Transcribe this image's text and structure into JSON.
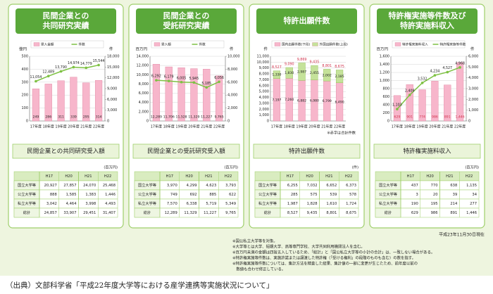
{
  "chart_data": [
    {
      "type": "bar_line",
      "title": [
        "民間企業との",
        "共同研究実績"
      ],
      "y_label": "億円",
      "y2_label": "件",
      "categories": [
        "17年度",
        "18年度",
        "19年度",
        "20年度",
        "21年度",
        "22年度"
      ],
      "series": [
        {
          "name": "受入金額",
          "color": "#f7b6cb",
          "values": [
            249,
            286,
            311,
            339,
            295,
            314
          ]
        },
        {
          "name": "件数",
          "color": "#7dc142",
          "axis": "y2",
          "values": [
            11054,
            12489,
            13790,
            14974,
            14779,
            15544
          ],
          "value_labels": [
            "11,054",
            "12,489",
            "13,790",
            "14,974",
            "14,779",
            "15,544"
          ]
        }
      ],
      "ylim": [
        0,
        500
      ],
      "yticks": [
        0,
        100,
        200,
        300,
        400,
        500
      ],
      "y2lim": [
        0,
        18000
      ],
      "y2ticks": [
        0,
        {
          "value": 3000,
          "label": "3,000"
        },
        {
          "value": 6000,
          "label": "6,000"
        },
        {
          "value": 9000,
          "label": "9,000"
        },
        {
          "value": 12000,
          "label": "12,000"
        },
        {
          "value": 15000,
          "label": "15,000"
        },
        {
          "value": 18000,
          "label": "18,000"
        }
      ],
      "caption": "民間企業との共同研究受入額"
    },
    {
      "type": "bar_line",
      "title": [
        "民間企業との",
        "受託研究実績"
      ],
      "y_label": "百万円",
      "y2_label": "件",
      "categories": [
        "17年度",
        "18年度",
        "19年度",
        "20年度",
        "21年度",
        "22年度"
      ],
      "series": [
        {
          "name": "受入額",
          "color": "#f7b6cb",
          "values": [
            12289,
            11706,
            11528,
            11329,
            11227,
            9765
          ],
          "value_labels": [
            "12,289",
            "11,706",
            "11,528",
            "11,329",
            "11,227",
            "9,765"
          ]
        },
        {
          "name": "件数",
          "color": "#7dc142",
          "axis": "y2",
          "values": [
            6292,
            6179,
            6005,
            5945,
            5185,
            6056
          ],
          "value_labels": [
            "6,292",
            "6,179",
            "6,005",
            "5,945",
            "5,185",
            "6,056"
          ]
        }
      ],
      "ylim": [
        0,
        14000
      ],
      "yticks": [
        0,
        {
          "value": 2000,
          "label": "2,000"
        },
        {
          "value": 4000,
          "label": "4,000"
        },
        {
          "value": 6000,
          "label": "6,000"
        },
        {
          "value": 8000,
          "label": "8,000"
        },
        {
          "value": 10000,
          "label": "10,000"
        },
        {
          "value": 12000,
          "label": "12,000"
        },
        {
          "value": 14000,
          "label": "14,000"
        }
      ],
      "y2lim": [
        0,
        10000
      ],
      "y2ticks": [
        0,
        {
          "value": 2000,
          "label": "2,000"
        },
        {
          "value": 4000,
          "label": "4,000"
        },
        {
          "value": 6000,
          "label": "6,000"
        },
        {
          "value": 8000,
          "label": "8,000"
        },
        {
          "value": 10000,
          "label": "10,000"
        }
      ],
      "caption": "民間企業との受託研究受入額"
    },
    {
      "type": "stacked_bar",
      "title": [
        "特許出願件数"
      ],
      "y_label": "件",
      "categories": [
        "17年度",
        "18年度",
        "19年度",
        "20年度",
        "21年度",
        "22年度"
      ],
      "series": [
        {
          "name": "国内出願件数(下段)",
          "color": "#f7b6cb",
          "values": [
            7197,
            7260,
            6882,
            6980,
            6799,
            6490
          ],
          "value_labels": [
            "7,197",
            "7,260",
            "6,882",
            "6,980",
            "6,799",
            "6,490"
          ]
        },
        {
          "name": "外国出願件数(上段)",
          "color": "#c5e29a",
          "values": [
            1330,
            1830,
            2987,
            2455,
            2002,
            2185
          ],
          "value_labels": [
            "1,330",
            "1,830",
            "2,987",
            "2,455",
            "2,002",
            "2,185"
          ]
        }
      ],
      "totals": {
        "values": [
          8527,
          9090,
          9869,
          9435,
          8801,
          8675
        ],
        "value_labels": [
          "8,527",
          "9,090",
          "9,869",
          "9,435",
          "8,801",
          "8,675"
        ]
      },
      "ylim": [
        0,
        11000
      ],
      "yticks": [
        0,
        {
          "value": 1000,
          "label": "1,000"
        },
        {
          "value": 2000,
          "label": "2,000"
        },
        {
          "value": 3000,
          "label": "3,000"
        },
        {
          "value": 4000,
          "label": "4,000"
        },
        {
          "value": 5000,
          "label": "5,000"
        },
        {
          "value": 6000,
          "label": "6,000"
        },
        {
          "value": 7000,
          "label": "7,000"
        },
        {
          "value": 8000,
          "label": "8,000"
        },
        {
          "value": 9000,
          "label": "9,000"
        },
        {
          "value": 10000,
          "label": "10,000"
        },
        {
          "value": 11000,
          "label": "11,000"
        }
      ],
      "note": "※赤字は合計件数",
      "caption": "特許出願件数"
    },
    {
      "type": "bar_line",
      "title": [
        "特許権実施等件数及び",
        "特許実施料収入"
      ],
      "y_label": "百万円",
      "y2_label": "件",
      "categories": [
        "17年度",
        "18年度",
        "19年度",
        "20年度",
        "21年度",
        "22年度"
      ],
      "series": [
        {
          "name": "特許権実施料収入",
          "color": "#f7b6cb",
          "values": [
            629,
            901,
            774,
            986,
            891,
            1446
          ],
          "value_labels": [
            "629",
            "901",
            "774",
            "986",
            "891",
            "1,446"
          ]
        },
        {
          "name": "特許権実施等件数",
          "color": "#7dc142",
          "axis": "y2",
          "values": [
            1103,
            2409,
            3532,
            4234,
            4527,
            4968
          ],
          "value_labels": [
            "1,103",
            "2,409",
            "3,532",
            "4,234",
            "4,527",
            "4,968"
          ]
        }
      ],
      "ylim": [
        0,
        1600
      ],
      "yticks": [
        0,
        200,
        400,
        600,
        800,
        {
          "value": 1000,
          "label": "1,000"
        },
        {
          "value": 1200,
          "label": "1,200"
        },
        {
          "value": 1400,
          "label": "1,400"
        },
        {
          "value": 1600,
          "label": "1,600"
        }
      ],
      "y2lim": [
        0,
        6000
      ],
      "y2ticks": [
        0,
        {
          "value": 1000,
          "label": "1,000"
        },
        {
          "value": 2000,
          "label": "2,000"
        },
        {
          "value": 3000,
          "label": "3,000"
        },
        {
          "value": 4000,
          "label": "4,000"
        },
        {
          "value": 5000,
          "label": "5,000"
        },
        {
          "value": 6000,
          "label": "6,000"
        }
      ],
      "caption": "特許権実施料収入"
    }
  ],
  "tables": [
    {
      "unit": "(百万円)",
      "columns": [
        "H17",
        "H20",
        "H21",
        "H22"
      ],
      "rows": [
        {
          "label": "国立大学等",
          "cells": [
            "20,927",
            "27,857",
            "24,070",
            "25,468"
          ]
        },
        {
          "label": "公立大学等",
          "cells": [
            "888",
            "1,585",
            "1,383",
            "1,446"
          ]
        },
        {
          "label": "私立大学等",
          "cells": [
            "3,042",
            "4,464",
            "3,998",
            "4,493"
          ]
        },
        {
          "label": "総計",
          "cells": [
            "24,857",
            "33,907",
            "29,451",
            "31,407"
          ]
        }
      ]
    },
    {
      "unit": "(百万円)",
      "columns": [
        "H17",
        "H20",
        "H21",
        "H22"
      ],
      "rows": [
        {
          "label": "国立大学等",
          "cells": [
            "3,970",
            "4,299",
            "4,623",
            "3,793"
          ]
        },
        {
          "label": "公立大学等",
          "cells": [
            "749",
            "692",
            "885",
            "622"
          ]
        },
        {
          "label": "私立大学等",
          "cells": [
            "7,570",
            "6,338",
            "5,719",
            "5,349"
          ]
        },
        {
          "label": "総計",
          "cells": [
            "12,289",
            "11,329",
            "11,227",
            "9,765"
          ]
        }
      ]
    },
    {
      "unit": "(件)",
      "columns": [
        "H17",
        "H20",
        "H21",
        "H22"
      ],
      "rows": [
        {
          "label": "国立大学等",
          "cells": [
            "6,255",
            "7,032",
            "6,652",
            "6,373"
          ]
        },
        {
          "label": "公立大学等",
          "cells": [
            "285",
            "575",
            "539",
            "578"
          ]
        },
        {
          "label": "私立大学等",
          "cells": [
            "1,987",
            "1,828",
            "1,610",
            "1,724"
          ]
        },
        {
          "label": "総計",
          "cells": [
            "8,527",
            "9,435",
            "8,801",
            "8,675"
          ]
        }
      ]
    },
    {
      "unit": "(百万円)",
      "columns": [
        "H17",
        "H20",
        "H21",
        "H22"
      ],
      "rows": [
        {
          "label": "国立大学等",
          "cells": [
            "437",
            "770",
            "638",
            "1,135"
          ]
        },
        {
          "label": "公立大学等",
          "cells": [
            "3",
            "20",
            "39",
            "34"
          ]
        },
        {
          "label": "私立大学等",
          "cells": [
            "190",
            "195",
            "214",
            "277"
          ]
        },
        {
          "label": "総計",
          "cells": [
            "629",
            "986",
            "891",
            "1,446"
          ]
        }
      ]
    }
  ],
  "date": "平成23年11月30日現在",
  "notes": [
    "※国公私立大学等を対象。",
    "※大学等とは大学、短期大学、高等専門学校、大学共同利用機関法人を含む。",
    "※百万円未満の金額は四捨五入しているため、「総計」と「国公私立大学等の小計の合計」は、一致しない場合がある。",
    "※特許権実施等件数は、実施許諾または譲渡した特許権（「受ける権利」の段階のものも含む）の数を指す。",
    "※特許権実施等件数については、集計方法を精査した結果、集計値の一部に変更が生じたため、前年度以前の",
    "　数値も合わせ修正している。"
  ],
  "source": "（出典）文部科学省「平成22年度大学等における産学連携等実施状況について」"
}
